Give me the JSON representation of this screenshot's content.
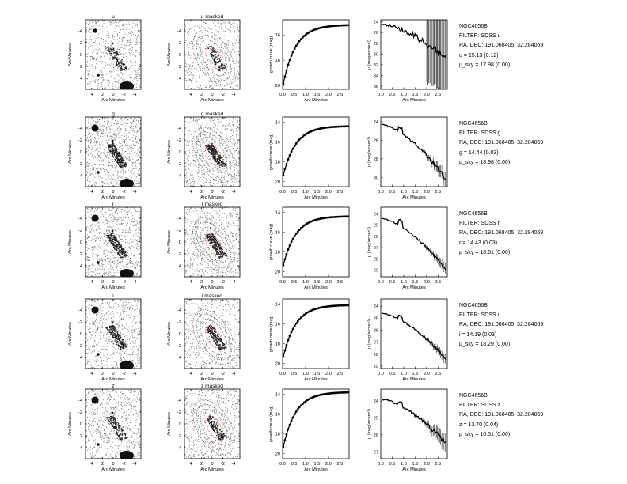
{
  "common": {
    "ra_dec": "RA, DEC: 191.068405, 32.284069",
    "arc_minutes": "Arc Minutes",
    "growth_ylabel": "growth curve (mag)",
    "profile_ylabel": "μ (mag/arcsec²)"
  },
  "rows": [
    {
      "band": "u",
      "image_title": "u",
      "masked_title": "u masked",
      "galaxy": "NGC4656B",
      "filter": "FILTER: SDSS u",
      "ra_dec": "RA, DEC: 191.068405, 32.284069",
      "mag": "u = 15.13  (0.12)",
      "mu_sky": "µ_sky = 17.98  (0.00)",
      "growth_ticks": [
        16,
        18,
        20
      ],
      "growth_range": [
        20.3,
        14.8
      ],
      "growth_start": 20.1,
      "growth_end": 15.2,
      "profile_ticks": [
        24,
        26,
        28,
        30,
        32,
        34,
        36
      ],
      "profile_range": [
        23.6,
        36.6
      ],
      "profile_start": 24.4,
      "profile_end": 30.8,
      "profile_noise": 1.6,
      "profile_errors": true,
      "profile_bump": 0.0
    },
    {
      "band": "g",
      "image_title": "g",
      "masked_title": "g masked",
      "galaxy": "NGC4656B",
      "filter": "FILTER: SDSS g",
      "ra_dec": "RA, DEC: 191.068405, 32.284069",
      "mag": "g = 14.44  (0.03)",
      "mu_sky": "µ_sky = 18.98  (0.00)",
      "growth_ticks": [
        14,
        16,
        18,
        20
      ],
      "growth_range": [
        20.5,
        13.5
      ],
      "growth_start": 19.6,
      "growth_end": 14.4,
      "profile_ticks": [
        24,
        26,
        28,
        30
      ],
      "profile_range": [
        23.5,
        31.0
      ],
      "profile_start": 24.3,
      "profile_end": 30.2,
      "profile_noise": 0.4,
      "profile_errors": false,
      "profile_bump": 0.5
    },
    {
      "band": "r",
      "image_title": "r",
      "masked_title": "r masked",
      "galaxy": "NGC4656B",
      "filter": "FILTER: SDSS r",
      "ra_dec": "RA, DEC: 191.068405, 32.284069",
      "mag": "r = 14.43  (0.03)",
      "mu_sky": "µ_sky = 18.61  (0.00)",
      "growth_ticks": [
        14,
        16,
        18,
        20
      ],
      "growth_range": [
        20.5,
        13.5
      ],
      "growth_start": 19.6,
      "growth_end": 14.4,
      "profile_ticks": [
        24,
        25,
        26,
        27,
        28,
        29
      ],
      "profile_range": [
        23.4,
        29.6
      ],
      "profile_start": 24.4,
      "profile_end": 29.0,
      "profile_noise": 0.25,
      "profile_errors": false,
      "profile_bump": 0.5
    },
    {
      "band": "i",
      "image_title": "i",
      "masked_title": "i masked",
      "galaxy": "NGC4656B",
      "filter": "FILTER: SDSS i",
      "ra_dec": "RA, DEC: 191.068405, 32.284069",
      "mag": "i = 14.19  (0.03)",
      "mu_sky": "µ_sky = 18.29  (0.00)",
      "growth_ticks": [
        14,
        16,
        18,
        20
      ],
      "growth_range": [
        20.5,
        13.5
      ],
      "growth_start": 19.6,
      "growth_end": 14.1,
      "profile_ticks": [
        24,
        25,
        26,
        27,
        28,
        29
      ],
      "profile_range": [
        23.4,
        29.2
      ],
      "profile_start": 24.6,
      "profile_end": 28.4,
      "profile_noise": 0.22,
      "profile_errors": false,
      "profile_bump": 0.3
    },
    {
      "band": "z",
      "image_title": "z",
      "masked_title": "z masked",
      "galaxy": "NGC4656B",
      "filter": "FILTER: SDSS z",
      "ra_dec": "RA, DEC: 191.068405, 32.284069",
      "mag": "z = 13.70  (0.04)",
      "mu_sky": "µ_sky = 16.51  (0.00)",
      "growth_ticks": [
        14,
        16,
        18,
        20
      ],
      "growth_range": [
        20.5,
        13.5
      ],
      "growth_start": 19.6,
      "growth_end": 13.8,
      "profile_ticks": [
        24,
        25,
        26,
        27
      ],
      "profile_range": [
        23.3,
        27.4
      ],
      "profile_start": 23.9,
      "profile_end": 26.5,
      "profile_noise": 0.28,
      "profile_errors": false,
      "profile_bump": 0.2
    }
  ],
  "chart_data": {
    "type": "line",
    "image_x_ticks": [
      4,
      2,
      0,
      -2,
      -4
    ],
    "image_y_ticks": [
      -4,
      -2,
      0,
      2,
      4
    ],
    "radius_ticks": [
      "0.0",
      "0.5",
      "1.0",
      "1.5",
      "2.0",
      "2.5"
    ],
    "radius_range": [
      0,
      2.9
    ],
    "radius_max": 2.85
  }
}
